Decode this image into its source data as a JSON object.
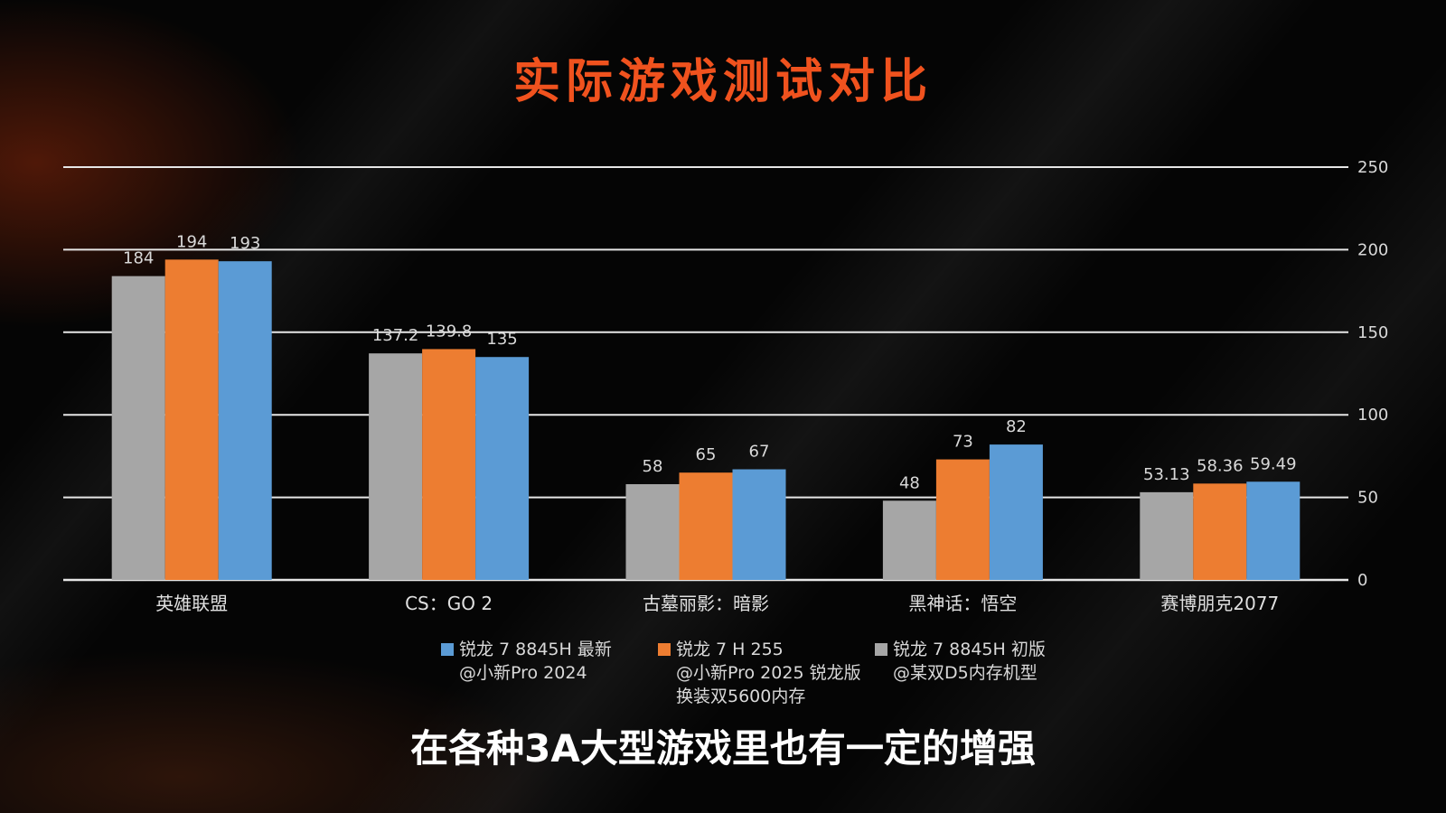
{
  "title": "实际游戏测试对比",
  "subtitle": "在各种3A大型游戏里也有一定的增强",
  "chart_data": {
    "type": "bar",
    "categories": [
      "英雄联盟",
      "CS：GO 2",
      "古墓丽影：暗影",
      "黑神话：悟空",
      "赛博朋克2077"
    ],
    "series": [
      {
        "name": "锐龙 7 8845H 初版\n@某双D5内存机型",
        "color": "#a6a6a6",
        "values": [
          184,
          137.2,
          58,
          48,
          53.13
        ],
        "labels": [
          "184",
          "137.2",
          "58",
          "48",
          "53.13"
        ]
      },
      {
        "name": "锐龙 7 H 255\n@小新Pro 2025 锐龙版\n换装双5600内存",
        "color": "#ed7d31",
        "values": [
          194,
          139.8,
          65,
          73,
          58.36
        ],
        "labels": [
          "194",
          "139.8",
          "65",
          "73",
          "58.36"
        ]
      },
      {
        "name": "锐龙 7 8845H 最新\n@小新Pro 2024",
        "color": "#5b9bd5",
        "values": [
          193,
          135,
          67,
          82,
          59.49
        ],
        "labels": [
          "193",
          "135",
          "67",
          "82",
          "59.49"
        ]
      }
    ],
    "legend_order": [
      2,
      1,
      0
    ],
    "ylim": [
      0,
      250
    ],
    "yticks": [
      0,
      50,
      100,
      150,
      200,
      250
    ],
    "yaxis_side": "right",
    "grid": true,
    "legend_position": "bottom"
  }
}
